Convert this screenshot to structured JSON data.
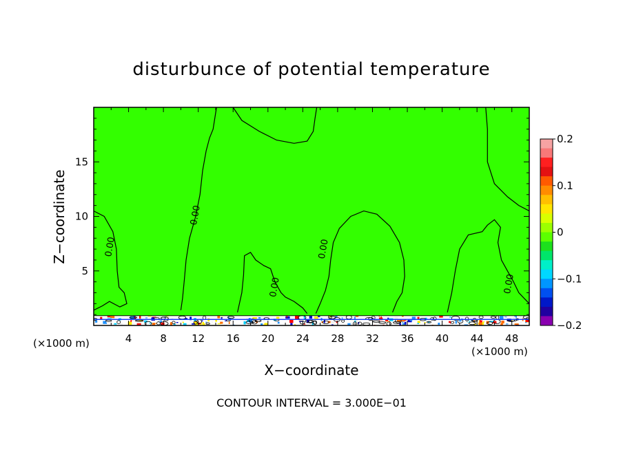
{
  "chart_data": {
    "type": "heatmap",
    "title": "disturbunce of potential temperature",
    "xlabel": "X−coordinate",
    "ylabel": "Z−coordinate",
    "x_unit_label": "(×1000 m)",
    "footer": "CONTOUR INTERVAL = 3.000E−01",
    "xlim": [
      0,
      50
    ],
    "ylim": [
      0,
      20
    ],
    "x_ticks": [
      4,
      8,
      12,
      16,
      20,
      24,
      28,
      32,
      36,
      40,
      44,
      48
    ],
    "x_tick_labels": [
      "4",
      "8",
      "12",
      "16",
      "20",
      "24",
      "28",
      "32",
      "36",
      "40",
      "44",
      "48"
    ],
    "y_ticks": [
      5,
      10,
      15
    ],
    "y_tick_labels": [
      "5",
      "10",
      "15"
    ],
    "background_level": 0,
    "zero_contours": [
      [
        [
          0,
          10.5
        ],
        [
          1.2,
          10
        ],
        [
          2.2,
          8.6
        ],
        [
          2.6,
          7
        ],
        [
          2.7,
          5
        ],
        [
          2.9,
          3.5
        ],
        [
          3.5,
          3
        ],
        [
          3.8,
          2
        ],
        [
          3,
          1.7
        ],
        [
          1.8,
          2.2
        ],
        [
          1,
          1.8
        ],
        [
          0,
          1.4
        ]
      ],
      [
        [
          10.0,
          1.4
        ],
        [
          10.2,
          2.5
        ],
        [
          10.4,
          4.2
        ],
        [
          10.6,
          6
        ],
        [
          11,
          8
        ],
        [
          11.7,
          10
        ],
        [
          12.2,
          12
        ],
        [
          12.5,
          14.2
        ],
        [
          12.9,
          16
        ],
        [
          13.3,
          17.2
        ],
        [
          13.7,
          18
        ],
        [
          13.9,
          19
        ],
        [
          14.1,
          20
        ]
      ],
      [
        [
          16,
          20
        ],
        [
          17,
          18.8
        ],
        [
          19,
          17.8
        ],
        [
          21,
          17
        ],
        [
          23,
          16.7
        ],
        [
          24.5,
          16.9
        ],
        [
          25.2,
          17.8
        ],
        [
          25.4,
          19
        ],
        [
          25.6,
          20
        ]
      ],
      [
        [
          16.5,
          1.2
        ],
        [
          17,
          3
        ],
        [
          17.2,
          4.6
        ],
        [
          17.3,
          6.4
        ],
        [
          18,
          6.7
        ],
        [
          18.6,
          6
        ],
        [
          19.5,
          5.5
        ],
        [
          20.3,
          5.2
        ],
        [
          20.8,
          4
        ],
        [
          21.5,
          3
        ],
        [
          22,
          2.6
        ],
        [
          23,
          2.2
        ],
        [
          24,
          1.6
        ],
        [
          24.5,
          1.1
        ]
      ],
      [
        [
          25.5,
          1.1
        ],
        [
          26,
          2
        ],
        [
          26.6,
          3.2
        ],
        [
          27,
          4.5
        ],
        [
          27.2,
          6
        ],
        [
          27.5,
          7.6
        ],
        [
          28.2,
          8.9
        ],
        [
          29.5,
          10
        ],
        [
          31,
          10.5
        ],
        [
          32.5,
          10.2
        ],
        [
          34,
          9.1
        ],
        [
          35.1,
          7.6
        ],
        [
          35.6,
          6
        ],
        [
          35.7,
          4.5
        ],
        [
          35.4,
          3
        ],
        [
          34.8,
          2.2
        ],
        [
          34.3,
          1.2
        ]
      ],
      [
        [
          40.6,
          1.2
        ],
        [
          41.1,
          3
        ],
        [
          41.5,
          5
        ],
        [
          42,
          7
        ],
        [
          43,
          8.3
        ],
        [
          44.6,
          8.6
        ],
        [
          45.2,
          9.2
        ],
        [
          46,
          9.7
        ],
        [
          46.7,
          9
        ],
        [
          46.4,
          7.6
        ],
        [
          46.8,
          6
        ],
        [
          47.5,
          5
        ],
        [
          48.2,
          4
        ],
        [
          48.8,
          3
        ],
        [
          50,
          2
        ]
      ],
      [
        [
          45,
          20
        ],
        [
          45.2,
          18
        ],
        [
          45.2,
          15
        ],
        [
          46,
          13
        ],
        [
          47.5,
          11.8
        ],
        [
          48.8,
          11
        ],
        [
          50,
          10.5
        ]
      ]
    ],
    "contour_labels": [
      {
        "text": "0.00",
        "x": 1.9,
        "y": 7.2
      },
      {
        "text": "0.00",
        "x": 11.7,
        "y": 10.1
      },
      {
        "text": "0.00",
        "x": 20.8,
        "y": 3.5
      },
      {
        "text": "0.00",
        "x": 26.4,
        "y": 7.0
      },
      {
        "text": "0.00",
        "x": 47.7,
        "y": 3.8
      }
    ],
    "colorbar": {
      "min": -0.2,
      "max": 0.2,
      "tick_labels": [
        "0.2",
        "0.1",
        "0",
        "−0.1",
        "−0.2"
      ],
      "tick_values": [
        0.2,
        0.1,
        0,
        -0.1,
        -0.2
      ],
      "colors_top_to_bottom": [
        "#f6a3a3",
        "#f87878",
        "#ff2020",
        "#e41212",
        "#ff5a00",
        "#ff8c00",
        "#ffbf00",
        "#ffe600",
        "#d9ff00",
        "#9cff00",
        "#5cff00",
        "#1de01d",
        "#00e66a",
        "#00f0c8",
        "#00d8ff",
        "#0096ff",
        "#0050f0",
        "#0018c8",
        "#2000a0",
        "#8a00b0"
      ]
    },
    "ground_layer_colors": [
      "#ffffff",
      "#1e90ff",
      "#ff6a00",
      "#ffee00",
      "#00d0ff",
      "#0000cc",
      "#ff0000",
      "#f0f0f0"
    ],
    "colors": {
      "field": "#33ff00",
      "contour": "#000000",
      "frame": "#000000"
    }
  }
}
